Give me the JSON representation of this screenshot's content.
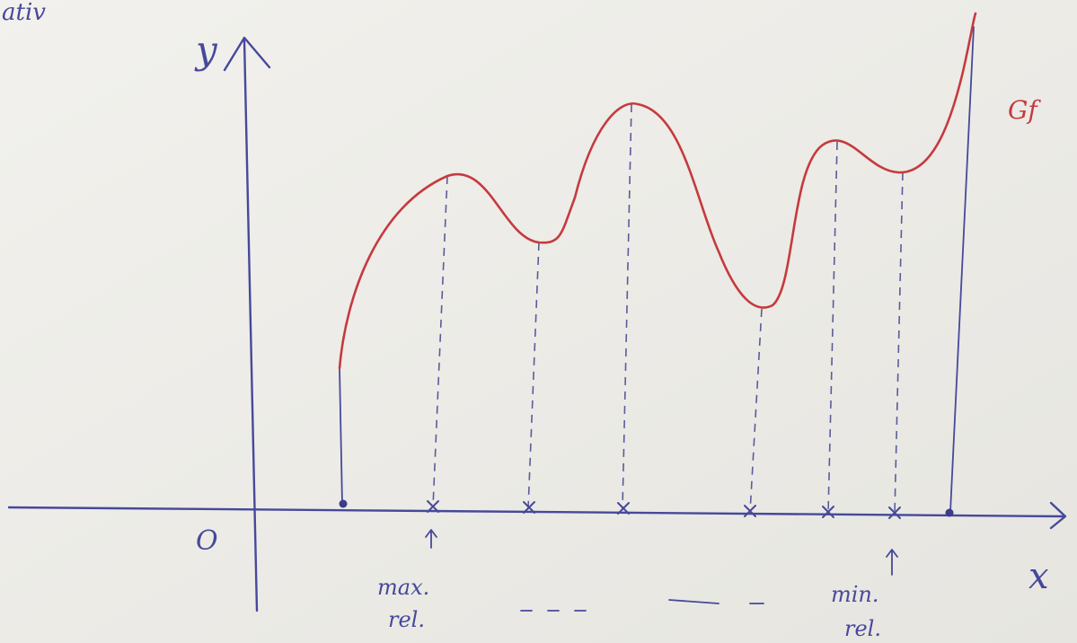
{
  "corner_text": "ativ",
  "axes": {
    "y_label": "y",
    "x_label": "x",
    "origin": "O"
  },
  "curve_label": "Gf",
  "annotations": [
    {
      "lines": [
        "max.",
        "rel."
      ]
    },
    {
      "lines": [
        "min.",
        "rel."
      ]
    }
  ]
}
